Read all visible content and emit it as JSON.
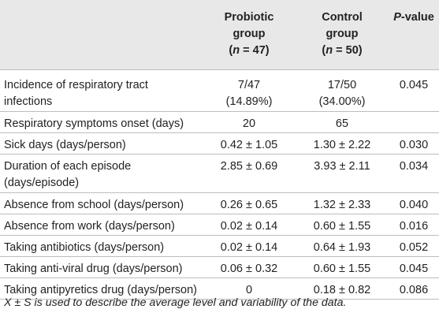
{
  "header": {
    "col_probiotic": [
      "Probiotic",
      "group",
      "(n = 47)"
    ],
    "col_control": [
      "Control",
      "group",
      "(n = 50)"
    ],
    "col_pvalue": "P-value"
  },
  "rows": [
    {
      "label": [
        "Incidence of respiratory tract",
        "infections"
      ],
      "probiotic": [
        "7/47",
        "(14.89%)"
      ],
      "control": [
        "17/50",
        "(34.00%)"
      ],
      "p": "0.045"
    },
    {
      "label": [
        "Respiratory symptoms onset (days)"
      ],
      "probiotic": [
        "20"
      ],
      "control": [
        "65"
      ],
      "p": ""
    },
    {
      "label": [
        "Sick days (days/person)"
      ],
      "probiotic": [
        "0.42 ± 1.05"
      ],
      "control": [
        "1.30 ± 2.22"
      ],
      "p": "0.030"
    },
    {
      "label": [
        "Duration of each episode",
        "(days/episode)"
      ],
      "probiotic": [
        "2.85 ± 0.69"
      ],
      "control": [
        "3.93 ± 2.11"
      ],
      "p": "0.034"
    },
    {
      "label": [
        "Absence from school (days/person)"
      ],
      "probiotic": [
        "0.26 ± 0.65"
      ],
      "control": [
        "1.32 ± 2.33"
      ],
      "p": "0.040"
    },
    {
      "label": [
        "Absence from work (days/person)"
      ],
      "probiotic": [
        "0.02 ± 0.14"
      ],
      "control": [
        "0.60 ± 1.55"
      ],
      "p": "0.016"
    },
    {
      "label": [
        "Taking antibiotics (days/person)"
      ],
      "probiotic": [
        "0.02 ± 0.14"
      ],
      "control": [
        "0.64 ± 1.93"
      ],
      "p": "0.052"
    },
    {
      "label": [
        "Taking anti-viral drug (days/person)"
      ],
      "probiotic": [
        "0.06 ± 0.32"
      ],
      "control": [
        "0.60 ± 1.55"
      ],
      "p": "0.045"
    },
    {
      "label": [
        "Taking antipyretics drug (days/person)"
      ],
      "probiotic": [
        "0"
      ],
      "control": [
        "0.18 ± 0.82"
      ],
      "p": "0.086"
    }
  ],
  "footnote": "X ± S is used to describe the average level and variability of the data."
}
